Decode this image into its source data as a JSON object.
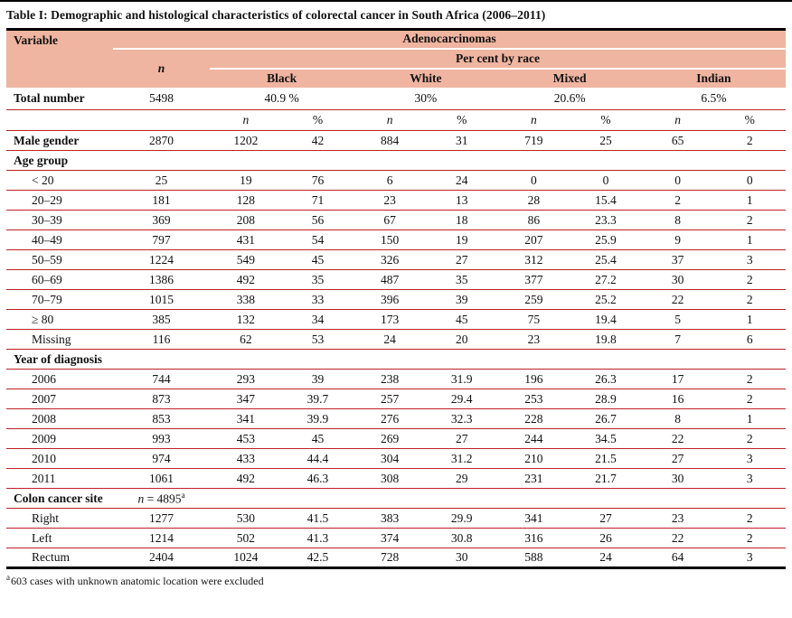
{
  "page": {
    "title": "Table I: Demographic and histological characteristics of colorectal cancer in South Africa (2006–2011)",
    "footnote": {
      "marker": "a",
      "text": "603 cases with unknown anatomic location were excluded"
    }
  },
  "colors": {
    "header_fill": "#efb5a0",
    "row_rule": "#bf2026",
    "frame": "#000000"
  },
  "table": {
    "header": {
      "variable": "Variable",
      "adenocarcinomas": "Adenocarcinomas",
      "n": "n",
      "percent_by_race": "Per cent by race",
      "races": [
        "Black",
        "White",
        "Mixed",
        "Indian"
      ]
    },
    "total_row": {
      "label": "Total number",
      "n": "5498",
      "percents": [
        "40.9 %",
        "30%",
        "20.6%",
        "6.5%"
      ]
    },
    "subheader": [
      "n",
      "%",
      "n",
      "%",
      "n",
      "%",
      "n",
      "%"
    ],
    "rows": [
      {
        "type": "data",
        "label": "Male gender",
        "bold": true,
        "indent": false,
        "values": [
          "2870",
          "1202",
          "42",
          "884",
          "31",
          "719",
          "25",
          "65",
          "2"
        ]
      },
      {
        "type": "section",
        "label": "Age group"
      },
      {
        "type": "data",
        "label": "< 20",
        "indent": true,
        "values": [
          "25",
          "19",
          "76",
          "6",
          "24",
          "0",
          "0",
          "0",
          "0"
        ]
      },
      {
        "type": "data",
        "label": "20–29",
        "indent": true,
        "values": [
          "181",
          "128",
          "71",
          "23",
          "13",
          "28",
          "15.4",
          "2",
          "1"
        ]
      },
      {
        "type": "data",
        "label": "30–39",
        "indent": true,
        "values": [
          "369",
          "208",
          "56",
          "67",
          "18",
          "86",
          "23.3",
          "8",
          "2"
        ]
      },
      {
        "type": "data",
        "label": "40–49",
        "indent": true,
        "values": [
          "797",
          "431",
          "54",
          "150",
          "19",
          "207",
          "25.9",
          "9",
          "1"
        ]
      },
      {
        "type": "data",
        "label": "50–59",
        "indent": true,
        "values": [
          "1224",
          "549",
          "45",
          "326",
          "27",
          "312",
          "25.4",
          "37",
          "3"
        ]
      },
      {
        "type": "data",
        "label": "60–69",
        "indent": true,
        "values": [
          "1386",
          "492",
          "35",
          "487",
          "35",
          "377",
          "27.2",
          "30",
          "2"
        ]
      },
      {
        "type": "data",
        "label": "70–79",
        "indent": true,
        "values": [
          "1015",
          "338",
          "33",
          "396",
          "39",
          "259",
          "25.2",
          "22",
          "2"
        ]
      },
      {
        "type": "data",
        "label": "≥ 80",
        "indent": true,
        "values": [
          "385",
          "132",
          "34",
          "173",
          "45",
          "75",
          "19.4",
          "5",
          "1"
        ]
      },
      {
        "type": "data",
        "label": "Missing",
        "indent": true,
        "values": [
          "116",
          "62",
          "53",
          "24",
          "20",
          "23",
          "19.8",
          "7",
          "6"
        ]
      },
      {
        "type": "section",
        "label": "Year of diagnosis"
      },
      {
        "type": "data",
        "label": "2006",
        "indent": true,
        "values": [
          "744",
          "293",
          "39",
          "238",
          "31.9",
          "196",
          "26.3",
          "17",
          "2"
        ]
      },
      {
        "type": "data",
        "label": "2007",
        "indent": true,
        "values": [
          "873",
          "347",
          "39.7",
          "257",
          "29.4",
          "253",
          "28.9",
          "16",
          "2"
        ]
      },
      {
        "type": "data",
        "label": "2008",
        "indent": true,
        "values": [
          "853",
          "341",
          "39.9",
          "276",
          "32.3",
          "228",
          "26.7",
          "8",
          "1"
        ]
      },
      {
        "type": "data",
        "label": "2009",
        "indent": true,
        "values": [
          "993",
          "453",
          "45",
          "269",
          "27",
          "244",
          "34.5",
          "22",
          "2"
        ]
      },
      {
        "type": "data",
        "label": "2010",
        "indent": true,
        "values": [
          "974",
          "433",
          "44.4",
          "304",
          "31.2",
          "210",
          "21.5",
          "27",
          "3"
        ]
      },
      {
        "type": "data",
        "label": "2011",
        "indent": true,
        "values": [
          "1061",
          "492",
          "46.3",
          "308",
          "29",
          "231",
          "21.7",
          "30",
          "3"
        ]
      },
      {
        "type": "section",
        "label": "Colon cancer site",
        "note": {
          "prefix": "n",
          "value": " = 4895",
          "sup": "a"
        }
      },
      {
        "type": "data",
        "label": "Right",
        "indent": true,
        "values": [
          "1277",
          "530",
          "41.5",
          "383",
          "29.9",
          "341",
          "27",
          "23",
          "2"
        ]
      },
      {
        "type": "data",
        "label": "Left",
        "indent": true,
        "values": [
          "1214",
          "502",
          "41.3",
          "374",
          "30.8",
          "316",
          "26",
          "22",
          "2"
        ]
      },
      {
        "type": "data",
        "label": "Rectum",
        "indent": true,
        "values": [
          "2404",
          "1024",
          "42.5",
          "728",
          "30",
          "588",
          "24",
          "64",
          "3"
        ]
      }
    ]
  }
}
